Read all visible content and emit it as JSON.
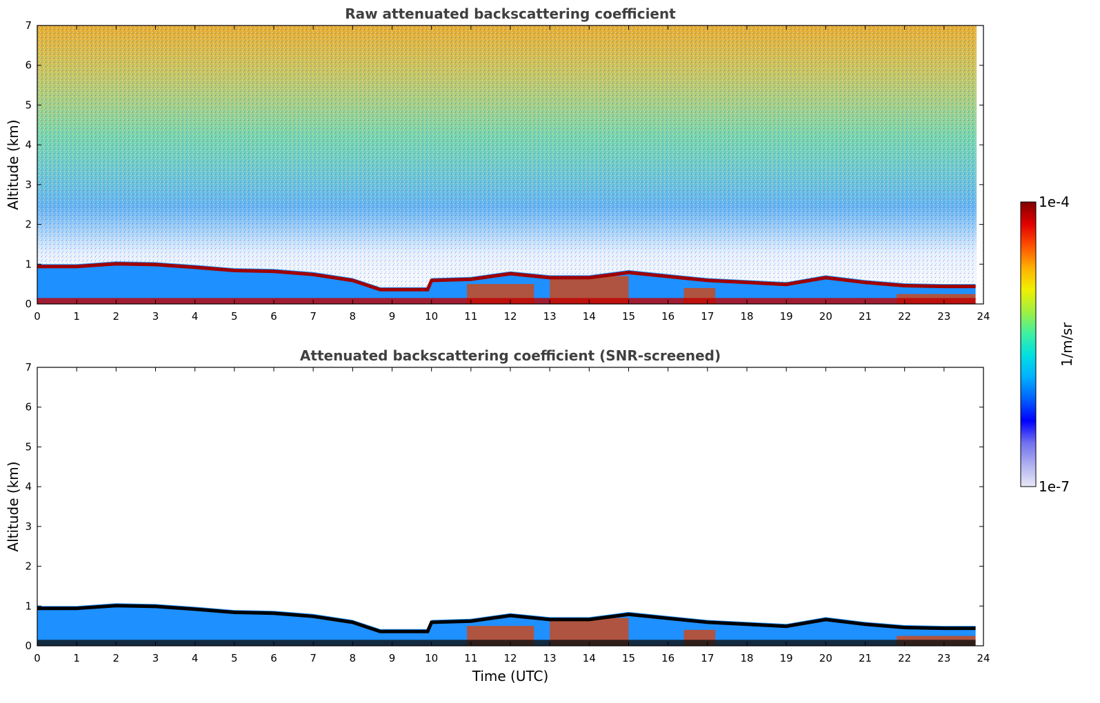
{
  "chart_data": [
    {
      "type": "heatmap",
      "title": "Raw attenuated backscattering coefficient",
      "xlabel": "",
      "ylabel": "Altitude (km)",
      "xlim": [
        0,
        24
      ],
      "ylim": [
        0,
        7
      ],
      "xticks": [
        "0",
        "1",
        "2",
        "3",
        "4",
        "5",
        "6",
        "7",
        "8",
        "9",
        "10",
        "11",
        "12",
        "13",
        "14",
        "15",
        "16",
        "17",
        "18",
        "19",
        "20",
        "21",
        "22",
        "23",
        "24"
      ],
      "yticks": [
        "0",
        "1",
        "2",
        "3",
        "4",
        "5",
        "6",
        "7"
      ],
      "layer_top_km": [
        [
          0,
          1.0
        ],
        [
          1,
          1.0
        ],
        [
          2,
          1.07
        ],
        [
          3,
          1.05
        ],
        [
          4,
          0.98
        ],
        [
          5,
          0.9
        ],
        [
          6,
          0.88
        ],
        [
          7,
          0.8
        ],
        [
          8,
          0.65
        ],
        [
          8.7,
          0.42
        ],
        [
          9.9,
          0.42
        ],
        [
          10,
          0.65
        ],
        [
          11,
          0.68
        ],
        [
          12,
          0.82
        ],
        [
          13,
          0.72
        ],
        [
          14,
          0.72
        ],
        [
          15,
          0.85
        ],
        [
          16,
          0.75
        ],
        [
          17,
          0.65
        ],
        [
          18,
          0.6
        ],
        [
          19,
          0.55
        ],
        [
          20,
          0.72
        ],
        [
          21,
          0.6
        ],
        [
          22,
          0.52
        ],
        [
          23,
          0.5
        ],
        [
          23.8,
          0.5
        ]
      ]
    },
    {
      "type": "heatmap",
      "title": "Attenuated backscattering coefficient (SNR-screened)",
      "xlabel": "Time (UTC)",
      "ylabel": "Altitude (km)",
      "xlim": [
        0,
        24
      ],
      "ylim": [
        0,
        7
      ],
      "xticks": [
        "0",
        "1",
        "2",
        "3",
        "4",
        "5",
        "6",
        "7",
        "8",
        "9",
        "10",
        "11",
        "12",
        "13",
        "14",
        "15",
        "16",
        "17",
        "18",
        "19",
        "20",
        "21",
        "22",
        "23",
        "24"
      ],
      "yticks": [
        "0",
        "1",
        "2",
        "3",
        "4",
        "5",
        "6",
        "7"
      ],
      "layer_top_km": [
        [
          0,
          1.0
        ],
        [
          1,
          1.0
        ],
        [
          2,
          1.07
        ],
        [
          3,
          1.05
        ],
        [
          4,
          0.98
        ],
        [
          5,
          0.9
        ],
        [
          6,
          0.88
        ],
        [
          7,
          0.8
        ],
        [
          8,
          0.65
        ],
        [
          8.7,
          0.42
        ],
        [
          9.9,
          0.42
        ],
        [
          10,
          0.65
        ],
        [
          11,
          0.68
        ],
        [
          12,
          0.82
        ],
        [
          13,
          0.72
        ],
        [
          14,
          0.72
        ],
        [
          15,
          0.85
        ],
        [
          16,
          0.75
        ],
        [
          17,
          0.65
        ],
        [
          18,
          0.6
        ],
        [
          19,
          0.55
        ],
        [
          20,
          0.72
        ],
        [
          21,
          0.6
        ],
        [
          22,
          0.52
        ],
        [
          23,
          0.5
        ],
        [
          23.8,
          0.5
        ]
      ]
    }
  ],
  "colorbar": {
    "label": "1/m/sr",
    "max_label": "1e-4",
    "min_label": "1e-7",
    "colormap": [
      "#e8e8f8",
      "#b0b0f0",
      "#7070f0",
      "#0000ff",
      "#0060ff",
      "#00b0ff",
      "#00e0e0",
      "#40f0a0",
      "#a0f040",
      "#f0f000",
      "#ffb000",
      "#ff5000",
      "#e00000",
      "#800000"
    ]
  }
}
